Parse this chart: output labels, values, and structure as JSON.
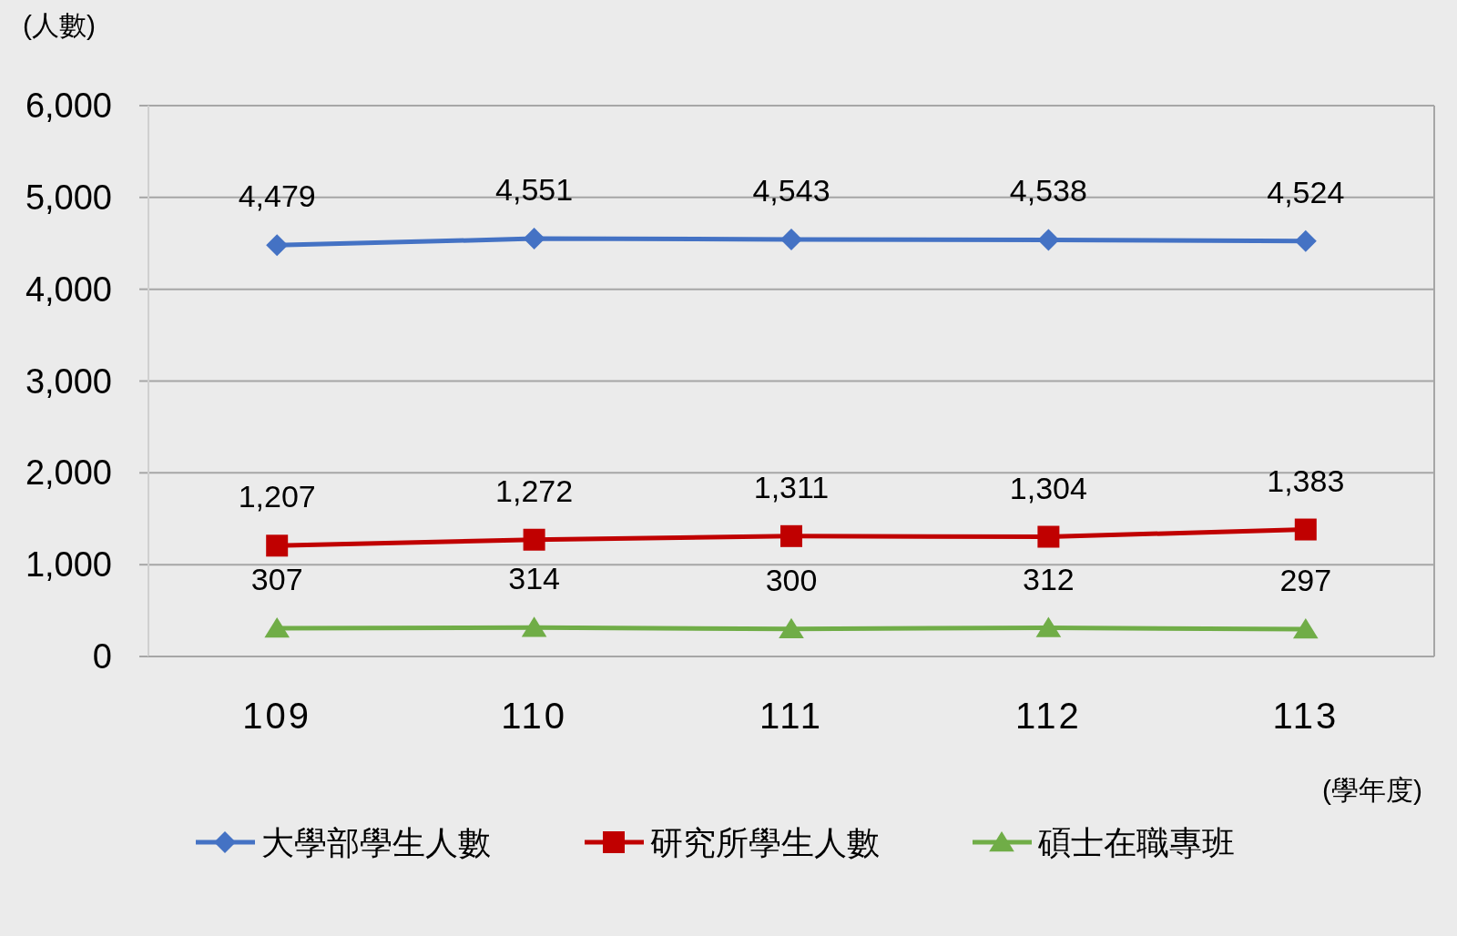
{
  "chart_data": {
    "type": "line",
    "ylabel": "(人數)",
    "xlabel": "(學年度)",
    "categories": [
      "109",
      "110",
      "111",
      "112",
      "113"
    ],
    "series": [
      {
        "name": "大學部學生人數",
        "color": "#4472c4",
        "marker": "diamond",
        "values": [
          4479,
          4551,
          4543,
          4538,
          4524
        ],
        "value_labels": [
          "4,479",
          "4,551",
          "4,543",
          "4,538",
          "4,524"
        ]
      },
      {
        "name": "研究所學生人數",
        "color": "#c00000",
        "marker": "square",
        "values": [
          1207,
          1272,
          1311,
          1304,
          1383
        ],
        "value_labels": [
          "1,207",
          "1,272",
          "1,311",
          "1,304",
          "1,383"
        ]
      },
      {
        "name": "碩士在職專班",
        "color": "#70ad47",
        "marker": "triangle",
        "values": [
          307,
          314,
          300,
          312,
          297
        ],
        "value_labels": [
          "307",
          "314",
          "300",
          "312",
          "297"
        ]
      }
    ],
    "ylim": [
      0,
      6000
    ],
    "yticks": [
      {
        "value": 0,
        "label": "0"
      },
      {
        "value": 1000,
        "label": "1,000"
      },
      {
        "value": 2000,
        "label": "2,000"
      },
      {
        "value": 3000,
        "label": "3,000"
      },
      {
        "value": 4000,
        "label": "4,000"
      },
      {
        "value": 5000,
        "label": "5,000"
      },
      {
        "value": 6000,
        "label": "6,000"
      }
    ],
    "grid": "y",
    "legend": "bottom"
  }
}
